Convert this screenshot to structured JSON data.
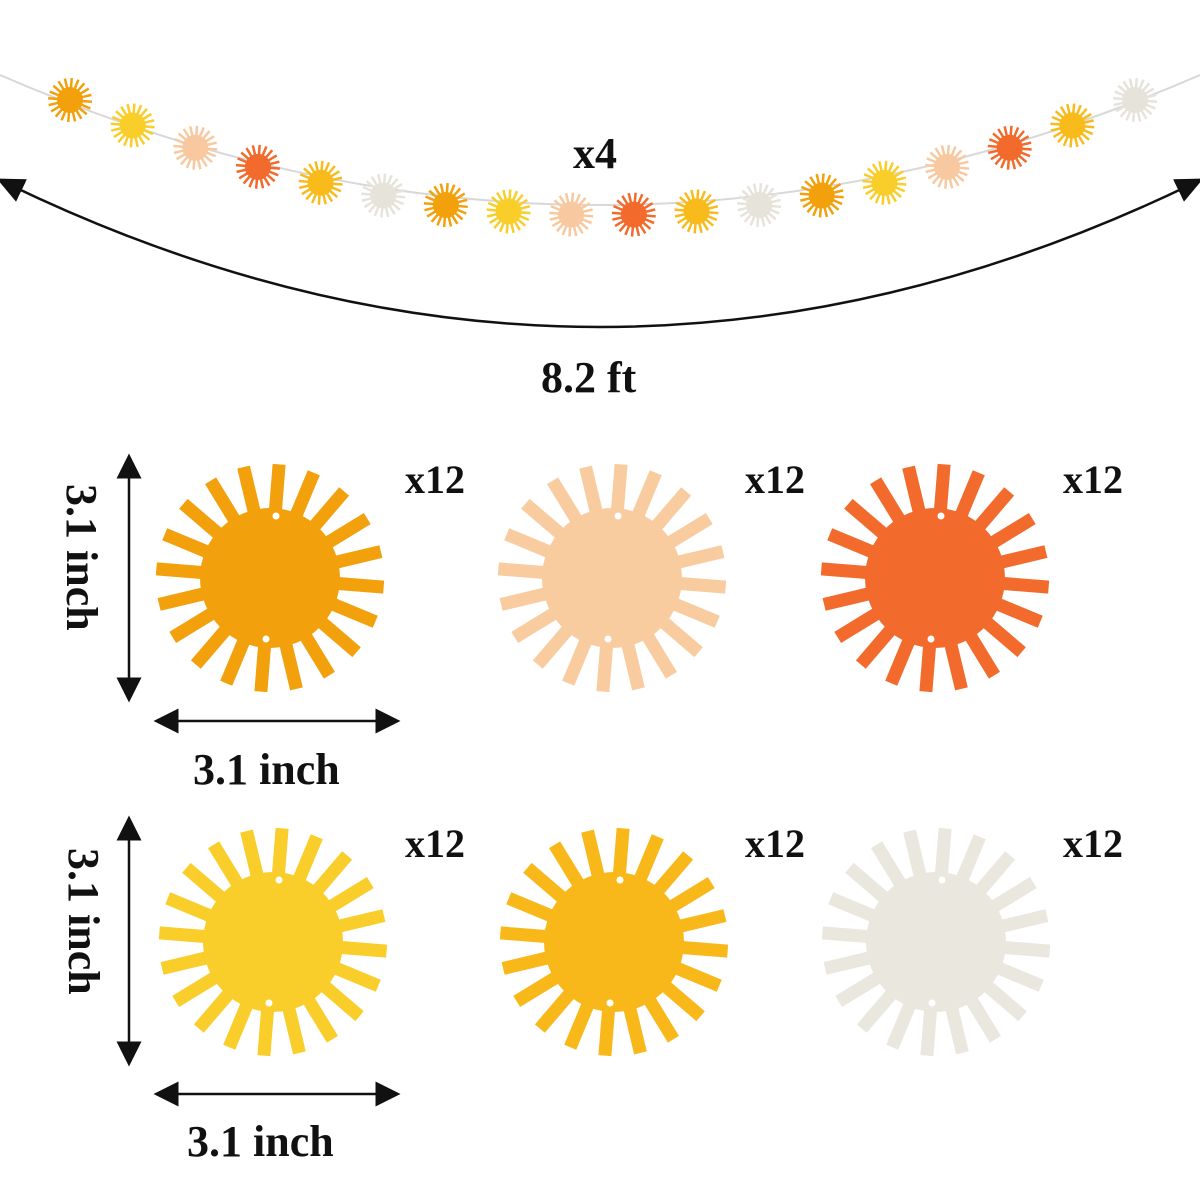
{
  "garland": {
    "quantity_label": "x4",
    "length_label": "8.2 ft",
    "string_color": "#d8d8d8",
    "suns": [
      {
        "color": "#f2a00c"
      },
      {
        "color": "#f9cd2a"
      },
      {
        "color": "#f8c9a0"
      },
      {
        "color": "#f26a2c"
      },
      {
        "color": "#f9bb1c"
      },
      {
        "color": "#e6e3da"
      },
      {
        "color": "#f2a00c"
      },
      {
        "color": "#f9cd2a"
      },
      {
        "color": "#f8c9a0"
      },
      {
        "color": "#f26a2c"
      },
      {
        "color": "#f9bb1c"
      },
      {
        "color": "#e6e3da"
      },
      {
        "color": "#f2a00c"
      },
      {
        "color": "#f9cd2a"
      },
      {
        "color": "#f8c9a0"
      },
      {
        "color": "#f26a2c"
      },
      {
        "color": "#f9bb1c"
      },
      {
        "color": "#e6e3da"
      }
    ]
  },
  "pieces": [
    {
      "name": "orange-sun",
      "color": "#f2a00c",
      "count": "x12"
    },
    {
      "name": "peach-sun",
      "color": "#f9cca0",
      "count": "x12"
    },
    {
      "name": "red-orange-sun",
      "color": "#f26a2c",
      "count": "x12"
    },
    {
      "name": "lemon-sun",
      "color": "#f9cd2a",
      "count": "x12"
    },
    {
      "name": "golden-sun",
      "color": "#f9b81a",
      "count": "x12"
    },
    {
      "name": "ivory-sun",
      "color": "#e9e7de",
      "count": "x12"
    }
  ],
  "dimensions": {
    "row1_height": "3.1 inch",
    "row1_width": "3.1 inch",
    "row2_height": "3.1 inch",
    "row2_width": "3.1 inch"
  }
}
